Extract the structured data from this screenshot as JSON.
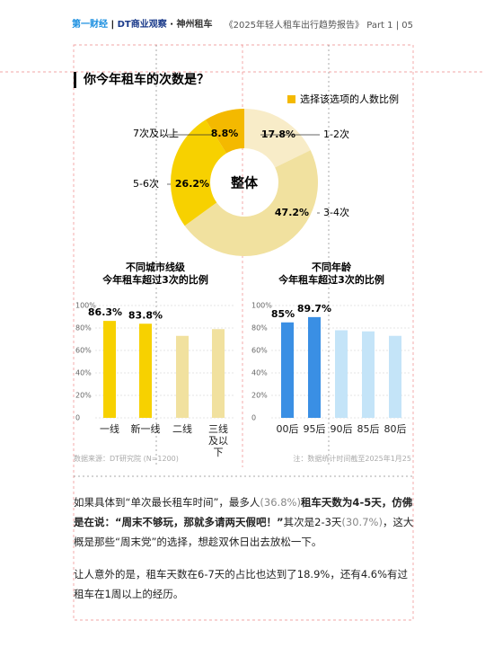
{
  "header": {
    "logos": [
      "第一财经",
      "DT商业观察",
      "神州租车"
    ],
    "report": "《2025年轻人租车出行趋势报告》",
    "part": "Part 1",
    "page": "05"
  },
  "section_title": "你今年租车的次数是？",
  "chart_data": [
    {
      "type": "donut",
      "legend": "选择该选项的人数比例",
      "center_label": "整体",
      "categories": [
        "1-2次",
        "3-4次",
        "5-6次",
        "7次及以上"
      ],
      "values": [
        17.8,
        47.2,
        26.2,
        8.8
      ],
      "value_labels": [
        "17.8%",
        "47.2%",
        "26.2%",
        "8.8%"
      ],
      "colors": [
        "#f8ecc8",
        "#f1e19f",
        "#f7d100",
        "#f4b900"
      ]
    },
    {
      "type": "bar",
      "title": "不同城市线级",
      "subtitle": "今年租车超过3次的比例",
      "categories": [
        "一线",
        "新一线",
        "二线",
        "三线及以下"
      ],
      "values": [
        86.3,
        83.8,
        73,
        79
      ],
      "value_labels": [
        "86.3%",
        "83.8%",
        null,
        null
      ],
      "colors": [
        "#f7d100",
        "#f7d100",
        "#f1e19f",
        "#f1e19f"
      ],
      "ylim": [
        0,
        100
      ],
      "yticks": [
        0,
        {
          "value": 20,
          "label": "20%"
        },
        {
          "value": 40,
          "label": "40%"
        },
        {
          "value": 60,
          "label": "60%"
        },
        {
          "value": 80,
          "label": "80%"
        },
        {
          "value": 100,
          "label": "100%"
        }
      ]
    },
    {
      "type": "bar",
      "title": "不同年龄",
      "subtitle": "今年租车超过3次的比例",
      "categories": [
        "00后",
        "95后",
        "90后",
        "85后",
        "80后"
      ],
      "values": [
        85,
        89.7,
        78,
        77,
        73
      ],
      "value_labels": [
        "85%",
        "89.7%",
        null,
        null,
        null
      ],
      "colors": [
        "#3a8fe4",
        "#3a8fe4",
        "#c4e4f8",
        "#c4e4f8",
        "#c4e4f8"
      ],
      "ylim": [
        0,
        100
      ],
      "yticks": [
        0,
        {
          "value": 20,
          "label": "20%"
        },
        {
          "value": 40,
          "label": "40%"
        },
        {
          "value": 60,
          "label": "60%"
        },
        {
          "value": 80,
          "label": "80%"
        },
        {
          "value": 100,
          "label": "100%"
        }
      ]
    }
  ],
  "notes": {
    "source": "数据来源：DT研究院 (N=1200)",
    "note": "注：数据统计时间截至2025年1月25"
  },
  "paragraphs": [
    [
      "如果具体到“单次最长租车时间”，最多人",
      "(36.8%)",
      "租车天数为4-5天，仿佛是在说：“周末不够玩，那就多请两天假吧！”",
      "其次是2-3天",
      "(30.7%)",
      "，这大概是那些“周末党”的选择，想趁双休日出去放松一下。"
    ],
    [
      "让人意外的是，租车天数在6-7天的占比也达到了18.9%，还有4.6%有过租车在1周以上的经历。"
    ]
  ]
}
